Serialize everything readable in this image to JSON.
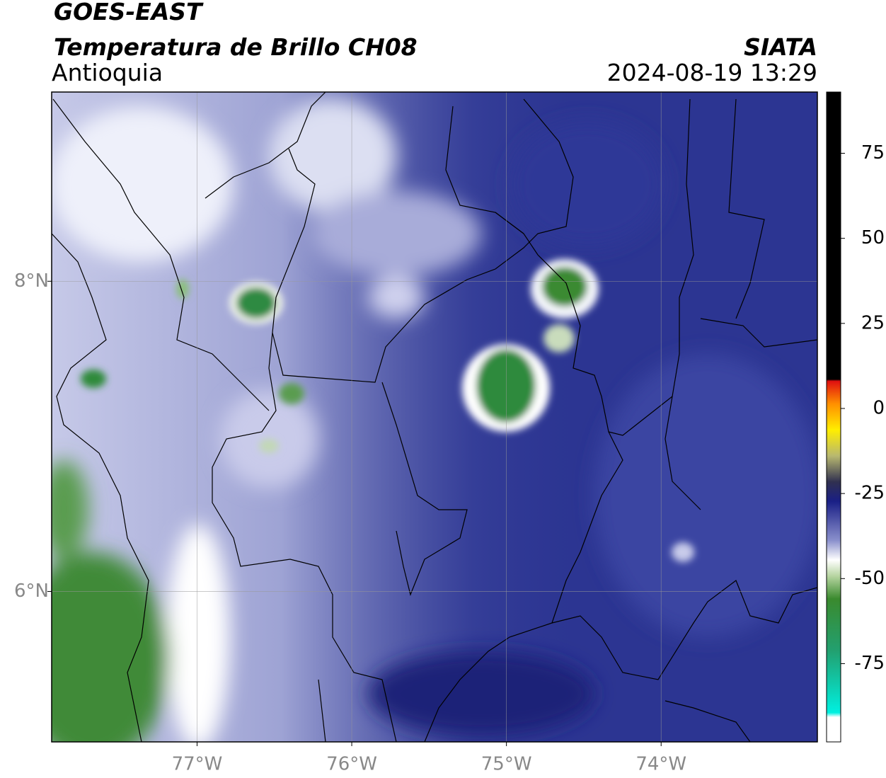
{
  "header": {
    "title": "GOES-EAST",
    "subtitle": "Temperatura de Brillo CH08",
    "region": "Antioquia",
    "source": "SIATA",
    "timestamp": "2024-08-19 13:29"
  },
  "map": {
    "xlim": [
      -77.94,
      -72.99
    ],
    "ylim": [
      5.03,
      9.22
    ],
    "xticks": [
      {
        "value": -77,
        "label": "77°W"
      },
      {
        "value": -76,
        "label": "76°W"
      },
      {
        "value": -75,
        "label": "75°W"
      },
      {
        "value": -74,
        "label": "74°W"
      }
    ],
    "yticks": [
      {
        "value": 8,
        "label": "8°N"
      },
      {
        "value": 6,
        "label": "6°N"
      }
    ],
    "grid": true
  },
  "colorbar": {
    "lim": [
      -98,
      93
    ],
    "ticks": [
      75,
      50,
      25,
      0,
      -25,
      -50,
      -75
    ]
  }
}
